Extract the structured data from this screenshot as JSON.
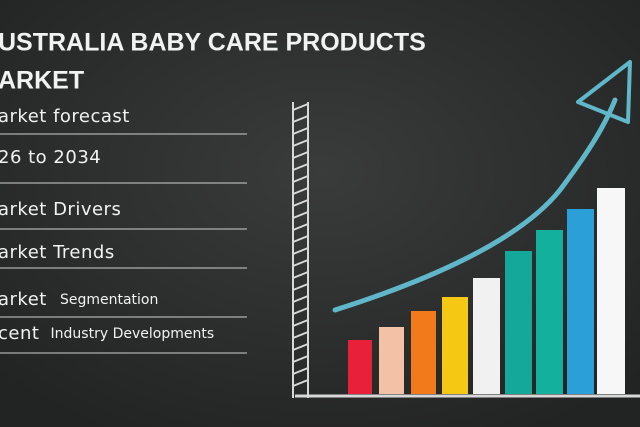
{
  "header": {
    "title_line_1": "USTRALIA BABY CARE PRODUCTS",
    "title_line_2": "ARKET"
  },
  "menu": {
    "items": [
      {
        "lead": "arket forecast"
      },
      {
        "lead": "26 to 2034"
      },
      {
        "lead": "arket Drivers"
      },
      {
        "lead": "arket Trends"
      },
      {
        "lead": "arket",
        "rest": "Segmentation"
      },
      {
        "lead": "cent",
        "rest": "Industry Developments"
      }
    ]
  }
}
